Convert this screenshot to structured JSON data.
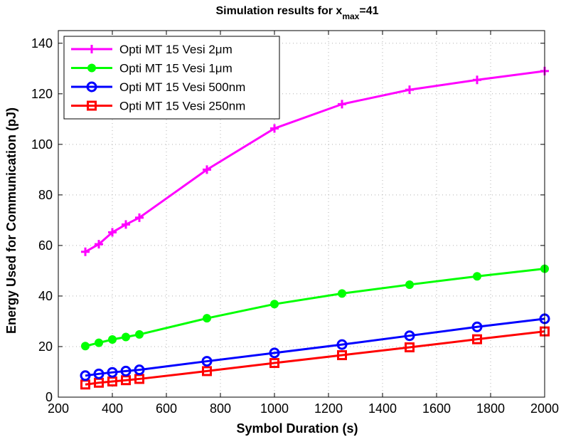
{
  "chart_data": {
    "type": "line",
    "title": "Simulation results for x",
    "title_subscript": "max",
    "title_suffix": "=41",
    "xlabel": "Symbol Duration (s)",
    "ylabel": "Energy Used for Communication (pJ)",
    "xlim": [
      200,
      2000
    ],
    "ylim": [
      0,
      145
    ],
    "xticks": [
      200,
      400,
      600,
      800,
      1000,
      1200,
      1400,
      1600,
      1800,
      2000
    ],
    "yticks": [
      0,
      20,
      40,
      60,
      80,
      100,
      120,
      140
    ],
    "grid": true,
    "legend_position": "top-left",
    "x": [
      300,
      350,
      400,
      450,
      500,
      750,
      1000,
      1250,
      1500,
      1750,
      2000
    ],
    "series": [
      {
        "name": "Opti MT 15 Vesi 2μm",
        "color": "#ff00ff",
        "marker": "plus",
        "values": [
          57.5,
          60.5,
          65.2,
          68.3,
          71.0,
          90.0,
          106.3,
          115.9,
          121.6,
          125.5,
          129.0
        ]
      },
      {
        "name": "Opti MT 15 Vesi 1μm",
        "color": "#00ff00",
        "marker": "filled-circle",
        "values": [
          20.2,
          21.5,
          22.8,
          23.8,
          24.8,
          31.2,
          36.8,
          41.0,
          44.5,
          47.8,
          50.8
        ]
      },
      {
        "name": "Opti MT 15 Vesi 500nm",
        "color": "#0000ff",
        "marker": "circle",
        "values": [
          8.5,
          9.2,
          9.8,
          10.3,
          10.8,
          14.2,
          17.5,
          20.8,
          24.3,
          27.8,
          31.0
        ]
      },
      {
        "name": "Opti MT 15 Vesi 250nm",
        "color": "#ff0000",
        "marker": "square",
        "values": [
          5.0,
          5.7,
          6.2,
          6.7,
          7.2,
          10.3,
          13.5,
          16.6,
          19.7,
          22.9,
          26.0
        ]
      }
    ]
  }
}
